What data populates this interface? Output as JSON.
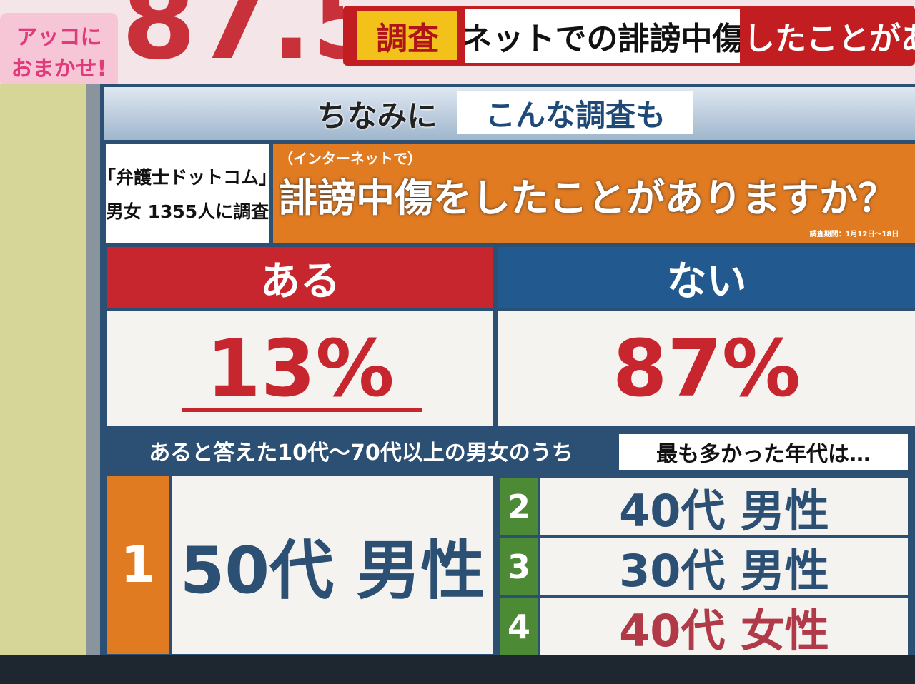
{
  "header": {
    "logo": [
      "アッコに",
      "おまかせ!"
    ],
    "big_number": "87.5",
    "banner": {
      "tag": "調査",
      "topic": "ネットでの誹謗中傷",
      "cut": "したことがあ"
    }
  },
  "panel": {
    "lead": "ちなみに",
    "lead_box": "こんな調査も",
    "source": [
      "「弁護士ドットコム」",
      "男女 1355人に調査"
    ],
    "question": {
      "note": "（インターネットで）",
      "text": "誹謗中傷をしたことがありますか？",
      "period": "調査期間：1月12日〜18日"
    },
    "answers": [
      {
        "label": "ある",
        "value": "13%"
      },
      {
        "label": "ない",
        "value": "87%"
      }
    ],
    "ranking_intro": "あると答えた10代〜70代以上の男女のうち",
    "ranking_question": "最も多かった年代は…",
    "ranking": [
      {
        "rank": "1",
        "group": "50代 男性"
      },
      {
        "rank": "2",
        "group": "40代 男性"
      },
      {
        "rank": "3",
        "group": "30代 男性"
      },
      {
        "rank": "4",
        "group": "40代 女性"
      }
    ]
  }
}
